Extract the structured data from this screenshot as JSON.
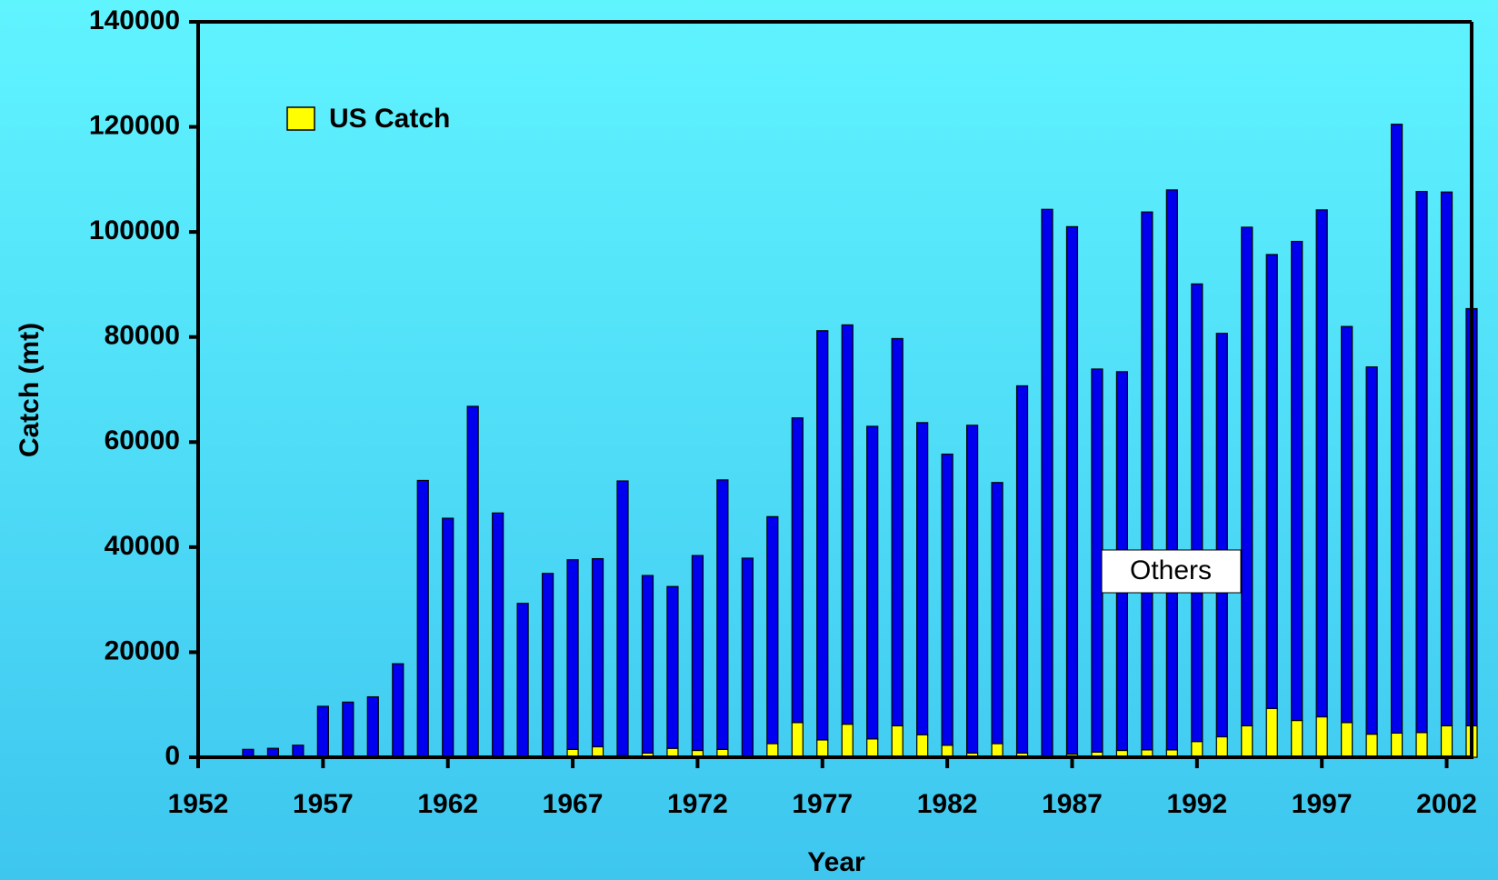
{
  "chart_data": {
    "type": "bar",
    "stacked": true,
    "x_label": "Year",
    "y_label": "Catch (mt)",
    "x": [
      1954,
      1955,
      1956,
      1957,
      1958,
      1959,
      1960,
      1961,
      1962,
      1963,
      1964,
      1965,
      1966,
      1967,
      1968,
      1969,
      1970,
      1971,
      1972,
      1973,
      1974,
      1975,
      1976,
      1977,
      1978,
      1979,
      1980,
      1981,
      1982,
      1983,
      1984,
      1985,
      1986,
      1987,
      1988,
      1989,
      1990,
      1991,
      1992,
      1993,
      1994,
      1995,
      1996,
      1997,
      1998,
      1999,
      2000,
      2001,
      2002,
      2003
    ],
    "series": [
      {
        "name": "US Catch",
        "color": "#ffff00",
        "values": [
          0,
          0,
          0,
          0,
          0,
          0,
          0,
          0,
          0,
          0,
          0,
          0,
          0,
          1500,
          2000,
          300,
          800,
          1700,
          1300,
          1500,
          0,
          2600,
          6600,
          3300,
          6300,
          3500,
          6000,
          4300,
          2300,
          800,
          2600,
          800,
          0,
          600,
          1000,
          1300,
          1400,
          1400,
          3000,
          3900,
          6000,
          9300,
          7000,
          7700,
          6600,
          4400,
          4600,
          4700,
          6000,
          6000
        ]
      },
      {
        "name": "Others",
        "color": "#0000ee",
        "values": [
          1500,
          1700,
          2300,
          9700,
          10500,
          11500,
          17800,
          52700,
          45500,
          66800,
          46500,
          29300,
          35000,
          36100,
          35800,
          52300,
          33800,
          30800,
          37100,
          51300,
          37900,
          43200,
          58000,
          77900,
          76000,
          59500,
          73700,
          59400,
          55400,
          62400,
          49700,
          69900,
          104300,
          100400,
          72900,
          72100,
          102400,
          106600,
          87100,
          76800,
          94900,
          86400,
          91200,
          96500,
          75400,
          69900,
          115900,
          103000,
          101600,
          79400
        ]
      }
    ],
    "xlim": [
      1952,
      2003
    ],
    "xticks": [
      1952,
      1957,
      1962,
      1967,
      1972,
      1977,
      1982,
      1987,
      1992,
      1997,
      2002
    ],
    "ylim": [
      0,
      140000
    ],
    "yticks": [
      0,
      20000,
      40000,
      60000,
      80000,
      100000,
      120000,
      140000
    ],
    "legend": "top-left"
  }
}
